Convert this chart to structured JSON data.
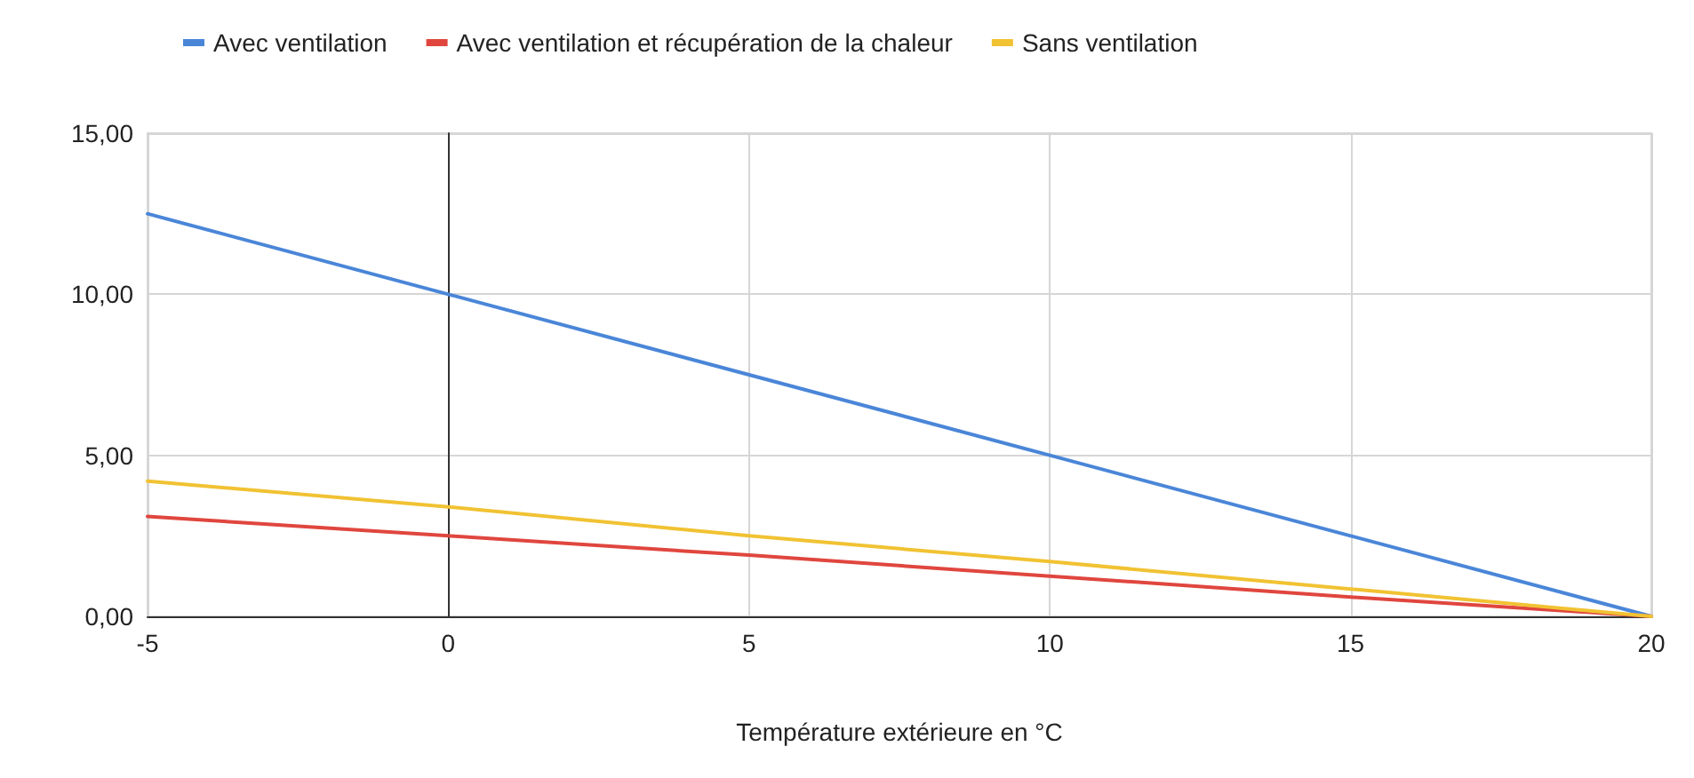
{
  "chart_data": {
    "type": "line",
    "xlabel": "Température extérieure en °C",
    "x": [
      -5,
      0,
      5,
      10,
      15,
      20
    ],
    "series": [
      {
        "name": "Avec ventilation",
        "color": "#4a86d8",
        "values": [
          12.5,
          10,
          7.5,
          5,
          2.5,
          0
        ]
      },
      {
        "name": "Avec ventilation et récupération de la chaleur",
        "color": "#e0463e",
        "values": [
          3.1,
          2.5,
          1.9,
          1.25,
          0.6,
          0
        ]
      },
      {
        "name": "Sans ventilation",
        "color": "#f1c232",
        "values": [
          4.2,
          3.4,
          2.5,
          1.7,
          0.85,
          0
        ]
      }
    ],
    "xlim": [
      -5,
      20
    ],
    "xticks": [
      -5,
      0,
      5,
      10,
      15,
      20
    ],
    "ylim": [
      0,
      15
    ],
    "yticks": [
      {
        "value": 0,
        "label": "0,00"
      },
      {
        "value": 5,
        "label": "5,00"
      },
      {
        "value": 10,
        "label": "10,00"
      },
      {
        "value": 15,
        "label": "15,00"
      }
    ],
    "grid": true,
    "legend": "top left",
    "marker": "none",
    "line_style": "solid"
  }
}
